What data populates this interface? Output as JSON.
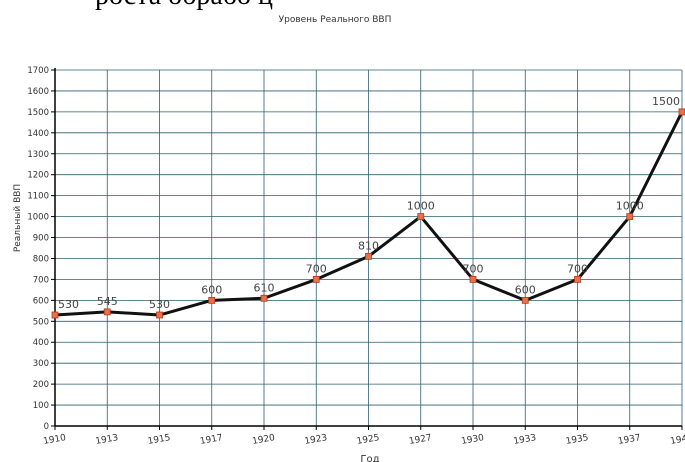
{
  "header_text": "роста обрабо   ц",
  "chart_data": {
    "type": "line",
    "title": "Уровень Реального ВВП",
    "xlabel": "Год",
    "ylabel": "Реальный ВВП",
    "ylim": [
      0,
      1700
    ],
    "yticks": [
      0,
      100,
      200,
      300,
      400,
      500,
      600,
      700,
      800,
      900,
      1000,
      1100,
      1200,
      1300,
      1400,
      1500,
      1600,
      1700
    ],
    "grid": true,
    "categories": [
      "1910",
      "1913",
      "1915",
      "1917",
      "1920",
      "1923",
      "1925",
      "1927",
      "1930",
      "1933",
      "1935",
      "1937",
      "1940"
    ],
    "series": [
      {
        "values": [
          530,
          545,
          530,
          600,
          610,
          700,
          810,
          1000,
          700,
          600,
          700,
          1000,
          1500
        ],
        "labels": [
          "530",
          "545",
          "530",
          "600",
          "610",
          "700",
          "810",
          "1000",
          "700",
          "600",
          "700",
          "1000",
          "1500"
        ]
      }
    ]
  },
  "colors": {
    "line": "#111111",
    "marker_fill": "#e8704a",
    "marker_stroke": "#b03a1a",
    "grid": "#2f5e6e",
    "axis": "#000000",
    "label": "#444444"
  }
}
